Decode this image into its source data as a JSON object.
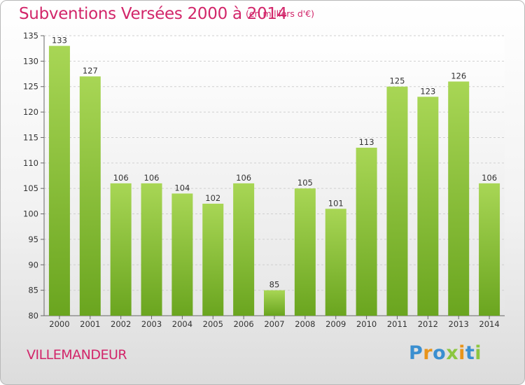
{
  "header": {
    "title": "Subventions Versées 2000 à 2014",
    "unit": "(en milliers d'€)"
  },
  "footer": {
    "commune": "VILLEMANDEUR",
    "logo_letters": [
      {
        "char": "P",
        "color": "#3a8fd0"
      },
      {
        "char": "r",
        "color": "#e8941a"
      },
      {
        "char": "o",
        "color": "#3a8fd0"
      },
      {
        "char": "x",
        "color": "#8cc63f"
      },
      {
        "char": "i",
        "color": "#e8941a"
      },
      {
        "char": "t",
        "color": "#3a8fd0"
      },
      {
        "char": "i",
        "color": "#8cc63f"
      }
    ]
  },
  "colors": {
    "accent": "#d2266a",
    "bar_light": "#a8d655",
    "bar_dark": "#6aa51f"
  },
  "chart_data": {
    "type": "bar",
    "title": "Subventions Versées 2000 à 2014",
    "subtitle": "(en milliers d'€)",
    "categories": [
      "2000",
      "2001",
      "2002",
      "2003",
      "2004",
      "2005",
      "2006",
      "2007",
      "2008",
      "2009",
      "2010",
      "2011",
      "2012",
      "2013",
      "2014"
    ],
    "values": [
      133,
      127,
      106,
      106,
      104,
      102,
      106,
      85,
      105,
      101,
      113,
      125,
      123,
      126,
      106
    ],
    "ylim": [
      80,
      135
    ],
    "yticks": [
      80,
      85,
      90,
      95,
      100,
      105,
      110,
      115,
      120,
      125,
      130,
      135
    ],
    "grid": true
  }
}
